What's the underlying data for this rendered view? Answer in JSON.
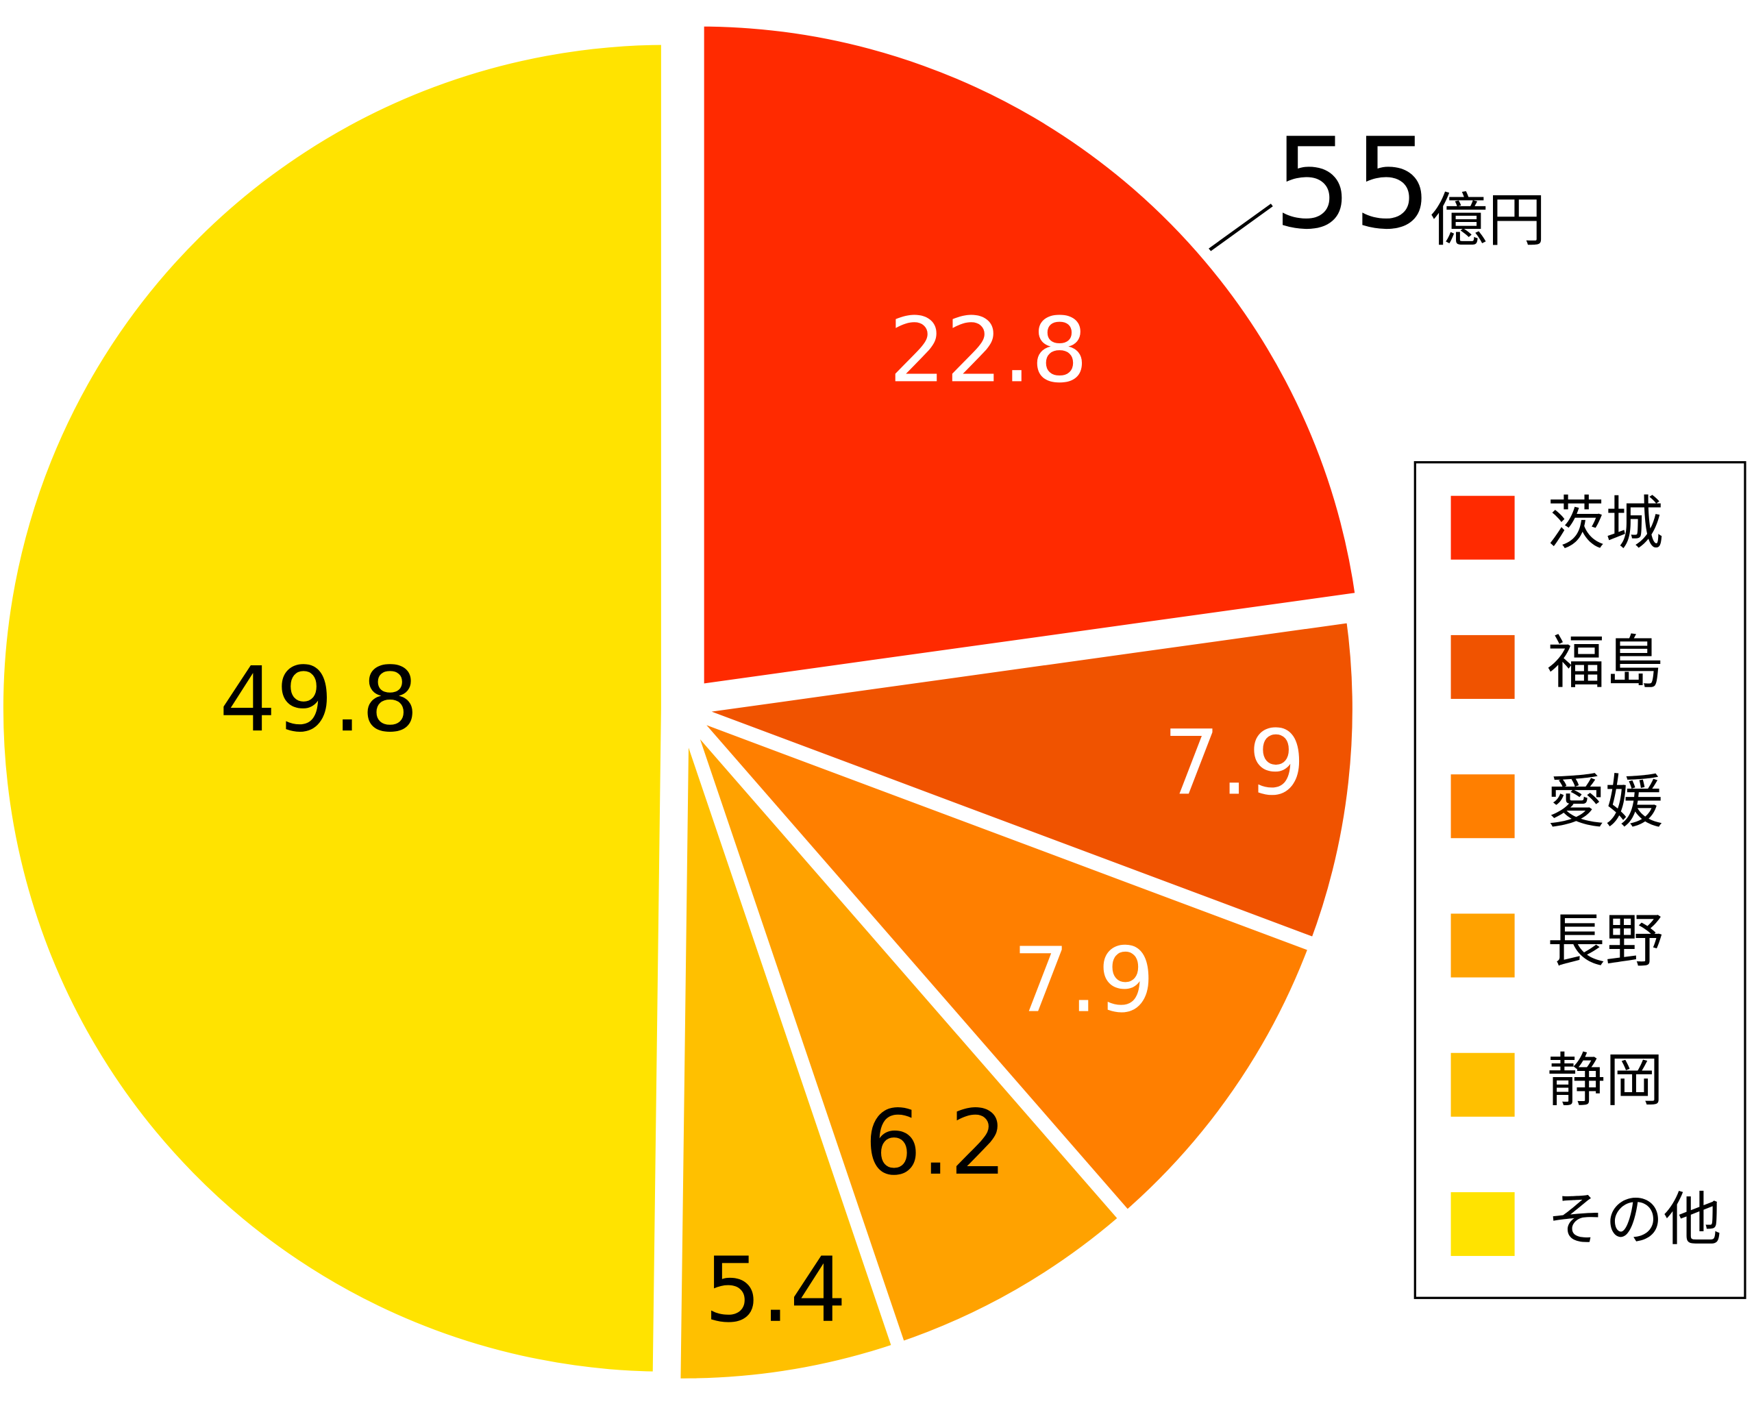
{
  "chart_data": {
    "type": "pie",
    "categories": [
      "茨城",
      "福島",
      "愛媛",
      "長野",
      "静岡",
      "その他"
    ],
    "values": [
      22.8,
      7.9,
      7.9,
      6.2,
      5.4,
      49.8
    ],
    "colors": [
      "#ff2a00",
      "#f05300",
      "#ff7f00",
      "#ffa200",
      "#ffc000",
      "#ffe300"
    ],
    "label_colors": [
      "#ffffff",
      "#ffffff",
      "#ffffff",
      "#000000",
      "#000000",
      "#000000"
    ],
    "annotation": {
      "value": "55",
      "unit": "億円"
    },
    "legend": "right"
  }
}
